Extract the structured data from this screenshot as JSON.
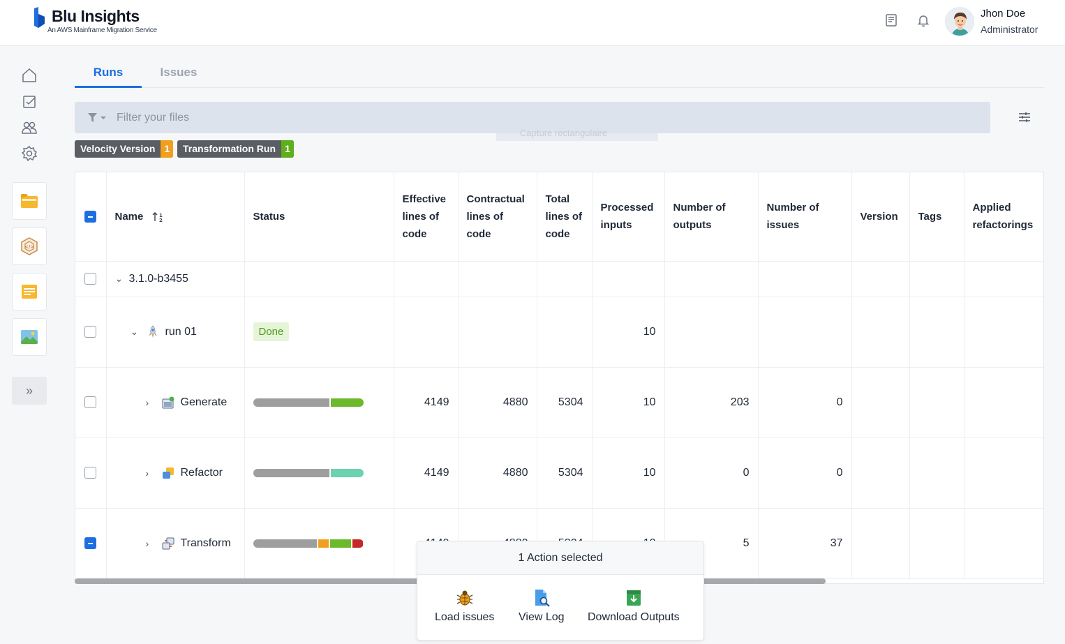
{
  "brand": {
    "title": "Blu Insights",
    "subtitle": "An AWS Mainframe Migration Service"
  },
  "header": {
    "icons": [
      "book-icon",
      "bell-icon"
    ],
    "user": {
      "name": "Jhon Doe",
      "role": "Administrator"
    }
  },
  "sidebar": {
    "nav_icons": [
      "home-icon",
      "checklist-icon",
      "users-icon",
      "gear-icon"
    ],
    "cards": [
      "folder-icon",
      "codebase-icon",
      "notes-icon",
      "image-icon"
    ],
    "expand_label": "»"
  },
  "tabs": [
    {
      "label": "Runs",
      "active": true
    },
    {
      "label": "Issues",
      "active": false
    }
  ],
  "filter": {
    "placeholder": "Filter your files",
    "ghost_text": "Capture rectangulaire"
  },
  "chips": [
    {
      "label": "Velocity Version",
      "count": "1",
      "color": "#f0a01e"
    },
    {
      "label": "Transformation Run",
      "count": "1",
      "color": "#5fae1c"
    }
  ],
  "table": {
    "columns": {
      "name": "Name",
      "status": "Status",
      "effective": "Effective lines of code",
      "contractual": "Contractual lines of code",
      "total": "Total lines of code",
      "processed": "Processed inputs",
      "outputs": "Number of outputs",
      "issues": "Number of issues",
      "version": "Version",
      "tags": "Tags",
      "refactorings": "Applied refactorings"
    },
    "rows": {
      "version": {
        "name": "3.1.0-b3455"
      },
      "run": {
        "name": "run 01",
        "status": "Done",
        "processed": "10"
      },
      "generate": {
        "name": "Generate",
        "effective": "4149",
        "contractual": "4880",
        "total": "5304",
        "processed": "10",
        "outputs": "203",
        "issues": "0",
        "progress": [
          {
            "value": 0.7,
            "color": "#9e9e9e"
          },
          {
            "value": 0.3,
            "color": "#6cb92c"
          }
        ]
      },
      "refactor": {
        "name": "Refactor",
        "effective": "4149",
        "contractual": "4880",
        "total": "5304",
        "processed": "10",
        "outputs": "0",
        "issues": "0",
        "progress": [
          {
            "value": 0.7,
            "color": "#9e9e9e"
          },
          {
            "value": 0.3,
            "color": "#6cd3b0"
          }
        ]
      },
      "transform": {
        "name": "Transform",
        "effective": "4149",
        "contractual": "4880",
        "total": "5304",
        "processed": "10",
        "outputs": "5",
        "issues": "37",
        "progress": [
          {
            "value": 0.6,
            "color": "#9e9e9e"
          },
          {
            "value": 0.1,
            "color": "#f0a01e"
          },
          {
            "value": 0.2,
            "color": "#6cb92c"
          },
          {
            "value": 0.1,
            "color": "#c62828"
          }
        ]
      }
    }
  },
  "actions": {
    "header": "1 Action selected",
    "items": [
      {
        "label": "Load issues",
        "icon": "bug-icon"
      },
      {
        "label": "View Log",
        "icon": "log-search-icon"
      },
      {
        "label": "Download Outputs",
        "icon": "download-icon"
      }
    ]
  }
}
